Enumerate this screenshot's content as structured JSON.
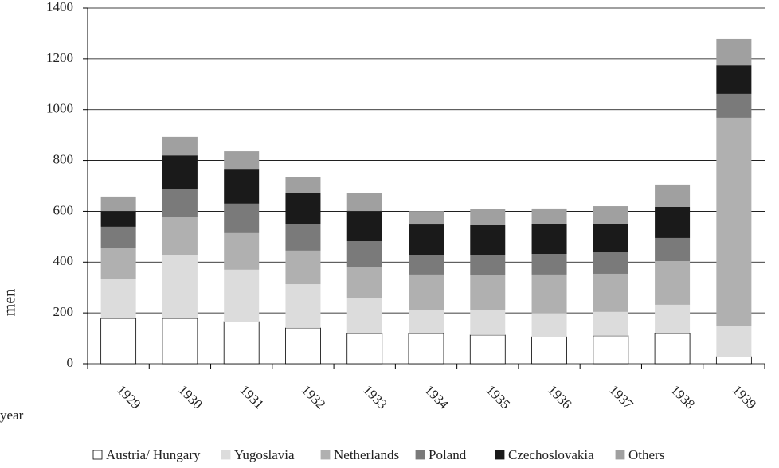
{
  "chart_data": {
    "type": "stacked_bar",
    "y_label": "men",
    "x_label": "year",
    "categories": [
      "1929",
      "1930",
      "1931",
      "1932",
      "1933",
      "1934",
      "1935",
      "1936",
      "1937",
      "1938",
      "1939"
    ],
    "series": [
      {
        "name": "Austria/ Hungary",
        "color": "#ffffff",
        "values": [
          178,
          178,
          166,
          141,
          119,
          119,
          113,
          106,
          110,
          119,
          28
        ]
      },
      {
        "name": "Yugoslavia",
        "color": "#dcdcdc",
        "values": [
          157,
          251,
          204,
          172,
          141,
          94,
          97,
          94,
          94,
          113,
          122
        ]
      },
      {
        "name": "Netherlands",
        "color": "#b0b0b0",
        "values": [
          119,
          147,
          144,
          132,
          122,
          138,
          138,
          151,
          150,
          172,
          818
        ]
      },
      {
        "name": "Poland",
        "color": "#7a7a7a",
        "values": [
          85,
          113,
          116,
          103,
          100,
          75,
          78,
          81,
          84,
          91,
          94
        ]
      },
      {
        "name": "Czechoslovakia",
        "color": "#1a1a1a",
        "values": [
          62,
          131,
          137,
          125,
          119,
          122,
          119,
          119,
          113,
          122,
          112
        ]
      },
      {
        "name": "Others",
        "color": "#a0a0a0",
        "values": [
          57,
          73,
          69,
          63,
          72,
          53,
          63,
          60,
          69,
          88,
          104
        ]
      }
    ],
    "ylim": [
      0,
      1400
    ],
    "yticks": [
      0,
      200,
      400,
      600,
      800,
      1000,
      1200,
      1400
    ],
    "grid": true
  }
}
